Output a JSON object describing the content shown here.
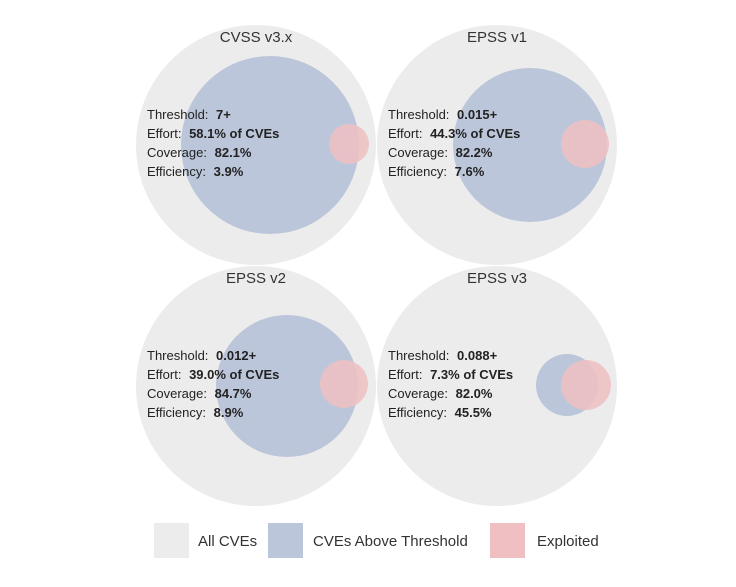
{
  "legend": {
    "all": {
      "label": "All CVEs",
      "color": "#ececec"
    },
    "above": {
      "label": "CVEs Above Threshold",
      "color": "#bcc6da"
    },
    "exploited": {
      "label": "Exploited",
      "color": "#f0bfc2"
    }
  },
  "stat_labels": {
    "threshold": "Threshold:",
    "effort": "Effort:",
    "coverage": "Coverage:",
    "efficiency": "Efficiency:"
  },
  "panels": [
    {
      "title": "CVSS v3.x",
      "threshold": "7+",
      "effort": "58.1% of CVEs",
      "coverage": "82.1%",
      "efficiency": "3.9%"
    },
    {
      "title": "EPSS v1",
      "threshold": "0.015+",
      "effort": "44.3% of CVEs",
      "coverage": "82.2%",
      "efficiency": "7.6%"
    },
    {
      "title": "EPSS v2",
      "threshold": "0.012+",
      "effort": "39.0% of CVEs",
      "coverage": "84.7%",
      "efficiency": "8.9%"
    },
    {
      "title": "EPSS v3",
      "threshold": "0.088+",
      "effort": "7.3% of CVEs",
      "coverage": "82.0%",
      "efficiency": "45.5%"
    }
  ]
}
